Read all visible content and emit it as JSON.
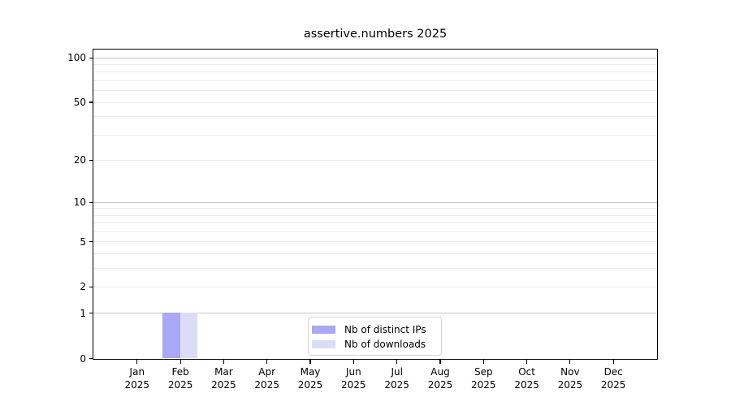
{
  "chart_data": {
    "type": "bar",
    "title": "assertive.numbers 2025",
    "xlabel": "",
    "ylabel": "",
    "categories": [
      "Jan 2025",
      "Feb 2025",
      "Mar 2025",
      "Apr 2025",
      "May 2025",
      "Jun 2025",
      "Jul 2025",
      "Aug 2025",
      "Sep 2025",
      "Oct 2025",
      "Nov 2025",
      "Dec 2025"
    ],
    "month_labels": [
      "Jan",
      "Feb",
      "Mar",
      "Apr",
      "May",
      "Jun",
      "Jul",
      "Aug",
      "Sep",
      "Oct",
      "Nov",
      "Dec"
    ],
    "year_label": "2025",
    "series": [
      {
        "name": "Nb of distinct IPs",
        "color": "#a8a8f5",
        "values": [
          0,
          1,
          0,
          0,
          0,
          0,
          0,
          0,
          0,
          0,
          0,
          0
        ]
      },
      {
        "name": "Nb of downloads",
        "color": "#dcdcf9",
        "values": [
          0,
          1,
          0,
          0,
          0,
          0,
          0,
          0,
          0,
          0,
          0,
          0
        ]
      }
    ],
    "yscale": "log1p",
    "ylim": [
      0,
      113
    ],
    "y_major_ticks": [
      0,
      1,
      2,
      5,
      10,
      20,
      50,
      100
    ],
    "y_minor_ticks": [
      3,
      4,
      6,
      7,
      8,
      9,
      30,
      40,
      60,
      70,
      80,
      90
    ],
    "grid": true,
    "legend_position": "lower center",
    "colors": {
      "grid_major": "#c6c6c6",
      "grid_minor": "#ebebeb",
      "axis": "#000000",
      "text": "#000000"
    }
  }
}
